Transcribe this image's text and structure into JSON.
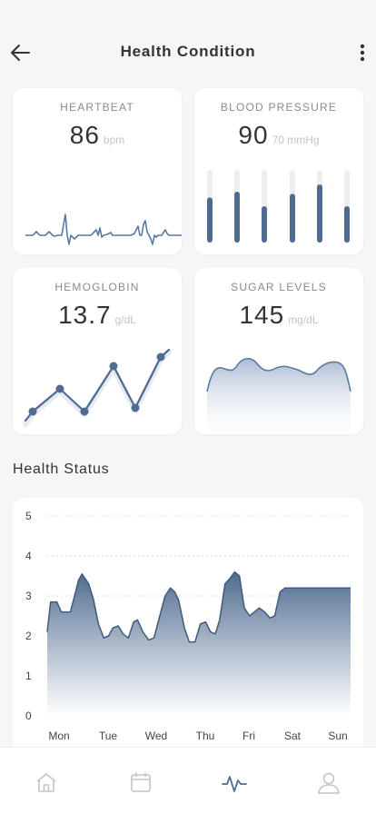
{
  "header": {
    "title": "Health Condition"
  },
  "cards": {
    "heartbeat": {
      "label": "HEARTBEAT",
      "value": "86",
      "unit": "bpm"
    },
    "blood_pressure": {
      "label": "BLOOD PRESSURE",
      "value": "90",
      "unit": "70 mmHg",
      "bar_levels": [
        0.62,
        0.7,
        0.5,
        0.67,
        0.8,
        0.5
      ]
    },
    "hemoglobin": {
      "label": "HEMOGLOBIN",
      "value": "13.7",
      "unit": "g/dL"
    },
    "sugar": {
      "label": "SUGAR LEVELS",
      "value": "145",
      "unit": "mg/dL"
    }
  },
  "health_status": {
    "title": "Health Status"
  },
  "chart_data": {
    "type": "area",
    "categories": [
      "Mon",
      "Tue",
      "Wed",
      "Thu",
      "Fri",
      "Sat",
      "Sun"
    ],
    "y_ticks": [
      "5",
      "4",
      "3",
      "2",
      "1",
      "0"
    ],
    "ylim": [
      0,
      5
    ],
    "grid": true,
    "x": [
      0,
      0.07,
      0.2,
      0.29,
      0.48,
      0.65,
      0.72,
      0.86,
      0.96,
      1.06,
      1.17,
      1.27,
      1.36,
      1.47,
      1.57,
      1.68,
      1.79,
      1.87,
      1.98,
      2.1,
      2.21,
      2.33,
      2.44,
      2.55,
      2.64,
      2.72,
      2.84,
      2.94,
      3.06,
      3.17,
      3.28,
      3.38,
      3.48,
      3.57,
      3.68,
      3.79,
      3.88,
      3.98,
      4.08,
      4.19,
      4.29,
      4.39,
      4.5,
      4.61,
      4.71,
      4.82,
      4.92,
      5.03,
      5.13,
      5.23,
      5.34,
      5.45,
      5.55,
      5.66,
      5.76,
      5.86,
      5.97,
      6.07,
      6.17,
      6.28
    ],
    "series": [
      {
        "values": [
          2.1,
          2.85,
          2.85,
          2.6,
          2.6,
          3.4,
          3.55,
          3.3,
          2.9,
          2.3,
          1.95,
          2.0,
          2.2,
          2.25,
          2.05,
          1.95,
          2.35,
          2.4,
          2.1,
          1.9,
          1.95,
          2.5,
          3.0,
          3.2,
          3.1,
          2.9,
          2.2,
          1.85,
          1.85,
          2.3,
          2.35,
          2.1,
          2.05,
          2.4,
          3.3,
          3.45,
          3.6,
          3.5,
          2.7,
          2.5,
          2.6,
          2.7,
          2.6,
          2.45,
          2.5,
          3.1,
          3.2,
          3.2,
          3.2,
          3.2,
          3.2,
          3.2,
          3.2,
          3.2,
          3.2,
          3.2,
          3.2,
          3.2,
          3.2,
          3.2
        ]
      }
    ]
  },
  "colors": {
    "accent": "#4f6b8f",
    "accent_light": "#c9d4e3",
    "bar_track": "#eeeeee"
  },
  "tabbar": {
    "items": [
      {
        "icon": "home-icon"
      },
      {
        "icon": "calendar-icon"
      },
      {
        "icon": "activity-icon",
        "active": true
      },
      {
        "icon": "profile-icon"
      }
    ]
  }
}
